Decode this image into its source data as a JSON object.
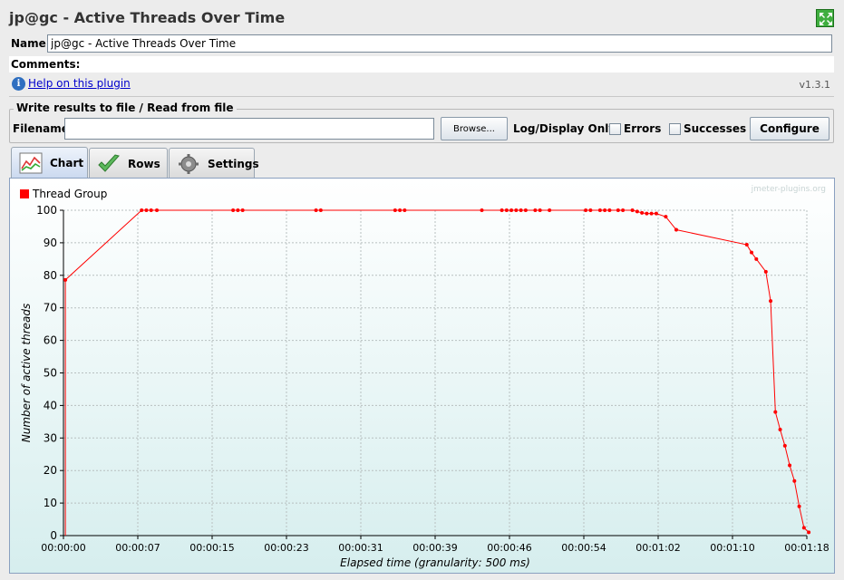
{
  "window": {
    "title": "jp@gc - Active Threads Over Time"
  },
  "name_row": {
    "label": "Name:",
    "value": "jp@gc - Active Threads Over Time"
  },
  "comments_row": {
    "label": "Comments:"
  },
  "help": {
    "link_text": "Help on this plugin",
    "version": "v1.3.1",
    "icon": "info-icon"
  },
  "file_panel": {
    "legend": "Write results to file / Read from file",
    "filename_label": "Filename",
    "filename_value": "",
    "browse_label": "Browse...",
    "log_display_label": "Log/Display Only:",
    "errors_label": "Errors",
    "errors_checked": false,
    "successes_label": "Successes",
    "successes_checked": false,
    "configure_label": "Configure"
  },
  "tabs": [
    {
      "label": "Chart",
      "icon": "chart-icon",
      "active": true
    },
    {
      "label": "Rows",
      "icon": "checkmark-icon",
      "active": false
    },
    {
      "label": "Settings",
      "icon": "gear-icon",
      "active": false
    }
  ],
  "chart_data": {
    "type": "line",
    "watermark": "jmeter-plugins.org",
    "xlabel": "Elapsed time (granularity: 500 ms)",
    "ylabel": "Number of active threads",
    "x_unit": "seconds",
    "xlim": [
      0,
      78
    ],
    "ylim": [
      0,
      100
    ],
    "x_tick_labels": [
      "00:00:00",
      "00:00:07",
      "00:00:15",
      "00:00:23",
      "00:00:31",
      "00:00:39",
      "00:00:46",
      "00:00:54",
      "00:01:02",
      "00:01:10",
      "00:01:18"
    ],
    "y_tick_labels": [
      "0",
      "10",
      "20",
      "30",
      "40",
      "50",
      "60",
      "70",
      "80",
      "90",
      "100"
    ],
    "grid": true,
    "legend_position": "top-left",
    "series": [
      {
        "name": "Thread Group",
        "color": "#ff0000",
        "points": [
          [
            0.2,
            78.6
          ],
          [
            8.2,
            100
          ],
          [
            8.7,
            100
          ],
          [
            9.2,
            100
          ],
          [
            9.8,
            100
          ],
          [
            17.8,
            100
          ],
          [
            18.3,
            100
          ],
          [
            18.8,
            100
          ],
          [
            26.5,
            100
          ],
          [
            27.0,
            100
          ],
          [
            34.8,
            100
          ],
          [
            35.3,
            100
          ],
          [
            35.8,
            100
          ],
          [
            43.9,
            100
          ],
          [
            46.0,
            100
          ],
          [
            46.5,
            100
          ],
          [
            47.0,
            100
          ],
          [
            47.5,
            100
          ],
          [
            48.0,
            100
          ],
          [
            48.5,
            100
          ],
          [
            49.5,
            100
          ],
          [
            50.0,
            100
          ],
          [
            51.0,
            100
          ],
          [
            54.8,
            100
          ],
          [
            55.3,
            100
          ],
          [
            56.3,
            100
          ],
          [
            56.8,
            100
          ],
          [
            57.3,
            100
          ],
          [
            58.2,
            100
          ],
          [
            58.7,
            100
          ],
          [
            59.7,
            100
          ],
          [
            60.2,
            99.6
          ],
          [
            60.7,
            99.2
          ],
          [
            61.2,
            99.0
          ],
          [
            61.7,
            99.0
          ],
          [
            62.2,
            99.0
          ],
          [
            63.2,
            98.0
          ],
          [
            64.3,
            94.0
          ],
          [
            71.7,
            89.4
          ],
          [
            72.2,
            87.0
          ],
          [
            72.7,
            85.0
          ],
          [
            73.7,
            81.1
          ],
          [
            74.2,
            72.1
          ],
          [
            74.7,
            38.0
          ],
          [
            75.2,
            32.6
          ],
          [
            75.7,
            27.6
          ],
          [
            76.2,
            21.6
          ],
          [
            76.7,
            16.8
          ],
          [
            77.2,
            9.0
          ],
          [
            77.7,
            2.4
          ],
          [
            78.2,
            1.0
          ]
        ]
      }
    ]
  }
}
